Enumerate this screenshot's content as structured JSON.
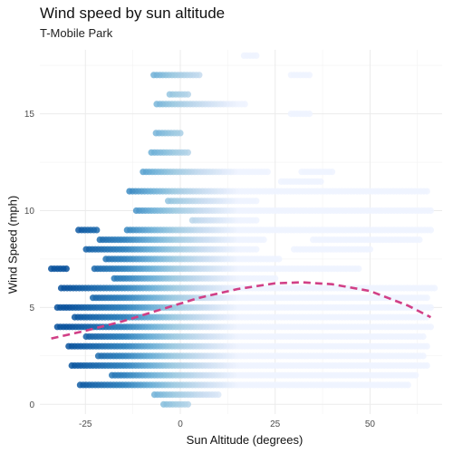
{
  "chart_data": {
    "type": "scatter",
    "title": "Wind speed by sun altitude",
    "subtitle": "T-Mobile Park",
    "xlabel": "Sun Altitude (degrees)",
    "ylabel": "Wind Speed (mph)",
    "xlim": [
      -37,
      69
    ],
    "ylim": [
      -0.5,
      18.3
    ],
    "x_ticks": [
      -25,
      0,
      25,
      50
    ],
    "x_tick_labels": [
      "-25",
      "0",
      "25",
      "50"
    ],
    "y_ticks": [
      0,
      5,
      10,
      15
    ],
    "y_tick_labels": [
      "0",
      "5",
      "10",
      "15"
    ],
    "grid": true,
    "legend": "none",
    "color_scale": {
      "description": "sequential blue by sun altitude",
      "stops": [
        {
          "x": -30,
          "color": "#08519c"
        },
        {
          "x": -15,
          "color": "#3182bd"
        },
        {
          "x": -8,
          "color": "#6baed6"
        },
        {
          "x": -2,
          "color": "#9ecae1"
        },
        {
          "x": 5,
          "color": "#c6dbef"
        },
        {
          "x": 15,
          "color": "#eff3ff"
        }
      ]
    },
    "point_segments": [
      {
        "y": 18,
        "x_start": 16,
        "x_end": 20
      },
      {
        "y": 17,
        "x_start": -7,
        "x_end": 5
      },
      {
        "y": 17,
        "x_start": 29,
        "x_end": 34
      },
      {
        "y": 16,
        "x_start": -3,
        "x_end": 2
      },
      {
        "y": 15.5,
        "x_start": -7,
        "x_end": 17
      },
      {
        "y": 15,
        "x_start": 29,
        "x_end": 34
      },
      {
        "y": 14,
        "x_start": -7,
        "x_end": 0
      },
      {
        "y": 13,
        "x_start": -8,
        "x_end": 2
      },
      {
        "y": 12,
        "x_start": -10,
        "x_end": 23
      },
      {
        "y": 12,
        "x_start": 32,
        "x_end": 40
      },
      {
        "y": 11.5,
        "x_start": 26,
        "x_end": 37
      },
      {
        "y": 11,
        "x_start": -14,
        "x_end": 65
      },
      {
        "y": 10.5,
        "x_start": -4,
        "x_end": 20
      },
      {
        "y": 10,
        "x_start": -12,
        "x_end": 66
      },
      {
        "y": 9.5,
        "x_start": 3,
        "x_end": 20
      },
      {
        "y": 9,
        "x_start": -27,
        "x_end": -22
      },
      {
        "y": 9,
        "x_start": -14,
        "x_end": 66
      },
      {
        "y": 8.5,
        "x_start": -22,
        "x_end": 22
      },
      {
        "y": 8.5,
        "x_start": 35,
        "x_end": 63
      },
      {
        "y": 8,
        "x_start": -25,
        "x_end": 20
      },
      {
        "y": 8,
        "x_start": 30,
        "x_end": 50
      },
      {
        "y": 7.5,
        "x_start": -20,
        "x_end": 26
      },
      {
        "y": 7,
        "x_start": -34,
        "x_end": -30
      },
      {
        "y": 7,
        "x_start": -23,
        "x_end": 47
      },
      {
        "y": 6.5,
        "x_start": -18,
        "x_end": 25
      },
      {
        "y": 6,
        "x_start": -32,
        "x_end": 67
      },
      {
        "y": 5.5,
        "x_start": -23,
        "x_end": 65
      },
      {
        "y": 5,
        "x_start": -33,
        "x_end": 66
      },
      {
        "y": 4.5,
        "x_start": -28,
        "x_end": 65
      },
      {
        "y": 4,
        "x_start": -33,
        "x_end": 66
      },
      {
        "y": 3.5,
        "x_start": -25,
        "x_end": 64
      },
      {
        "y": 3,
        "x_start": -30,
        "x_end": 65
      },
      {
        "y": 2.5,
        "x_start": -22,
        "x_end": 64
      },
      {
        "y": 2,
        "x_start": -29,
        "x_end": 65
      },
      {
        "y": 1.5,
        "x_start": -18,
        "x_end": 62
      },
      {
        "y": 1,
        "x_start": -27,
        "x_end": 60
      },
      {
        "y": 0.5,
        "x_start": -7,
        "x_end": 10
      },
      {
        "y": 0,
        "x_start": -5,
        "x_end": 2
      }
    ],
    "trend": {
      "style": "dashed",
      "color": "#d13f86",
      "x": [
        -34,
        -25,
        -15,
        -5,
        5,
        15,
        25,
        32,
        40,
        50,
        60,
        66
      ],
      "y": [
        3.4,
        3.8,
        4.3,
        4.9,
        5.5,
        5.95,
        6.25,
        6.3,
        6.2,
        5.85,
        5.1,
        4.5
      ]
    }
  }
}
